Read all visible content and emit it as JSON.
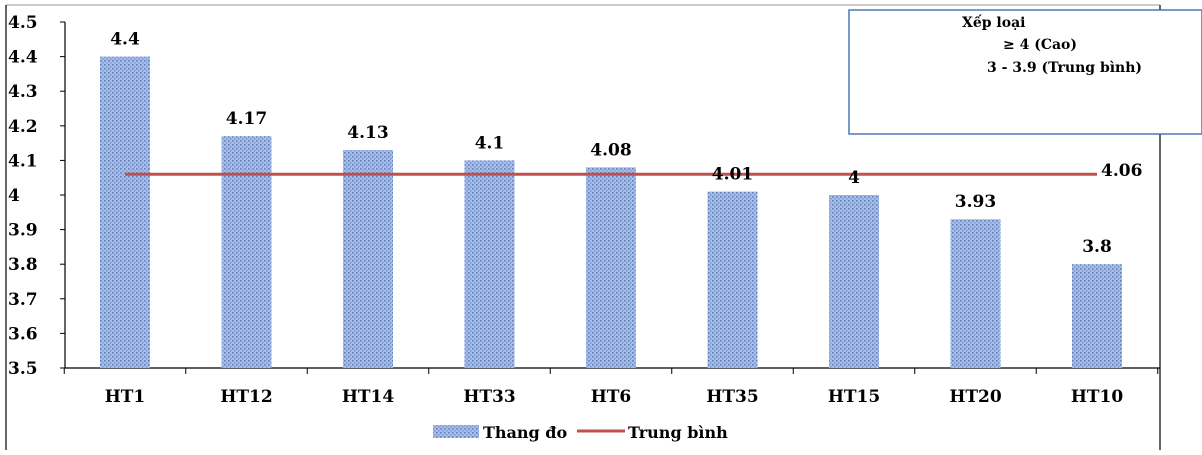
{
  "chart_data": {
    "type": "bar",
    "categories": [
      "HT1",
      "HT12",
      "HT14",
      "HT33",
      "HT6",
      "HT35",
      "HT15",
      "HT20",
      "HT10"
    ],
    "series": [
      {
        "name": "Thang đo",
        "type": "bar",
        "values": [
          4.4,
          4.17,
          4.13,
          4.1,
          4.08,
          4.01,
          4,
          3.93,
          3.8
        ],
        "color": "#8FA9DA",
        "pattern": "dotted"
      },
      {
        "name": "Trung bình",
        "type": "line",
        "value": 4.06,
        "color": "#C0504D"
      }
    ],
    "value_labels": [
      "4.4",
      "4.17",
      "4.13",
      "4.1",
      "4.08",
      "4.01",
      "4",
      "3.93",
      "3.8"
    ],
    "average_label": "4.06",
    "ylim": [
      3.5,
      4.5
    ],
    "y_ticks": [
      "3.5",
      "3.6",
      "3.7",
      "3.8",
      "3.9",
      "4",
      "4.1",
      "4.2",
      "4.3",
      "4.4",
      "4.5"
    ],
    "legend_position": "bottom",
    "grid": false
  },
  "note": {
    "title": "Xếp loại",
    "lines": [
      "≥ 4  (Cao)",
      "3 - 3.9 (Trung bình)"
    ]
  }
}
